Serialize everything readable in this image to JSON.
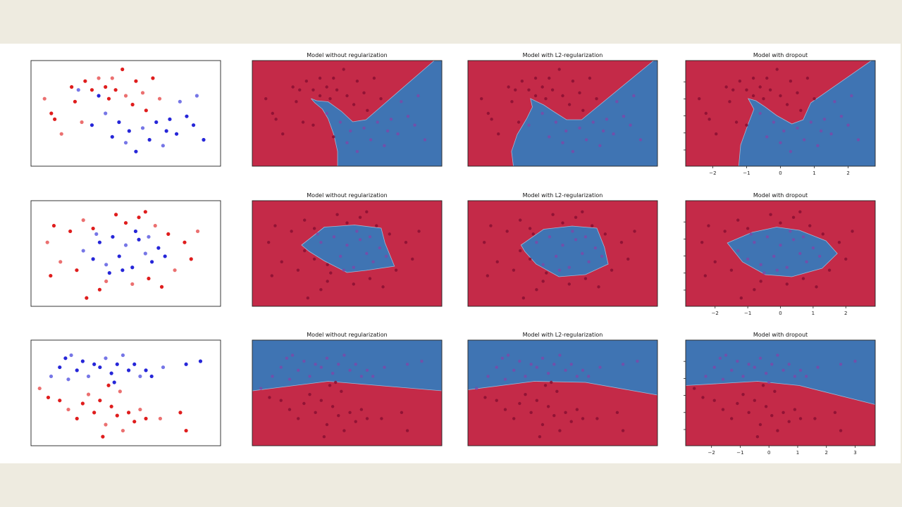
{
  "slide": {
    "background": "#eeebe0",
    "panel_background": "#ffffff"
  },
  "colors": {
    "class_red": "#c42a48",
    "class_blue": "#3f74b3",
    "pt_red": "#dd1111",
    "pt_blue": "#1a1ad6",
    "pt_on_red": "#8a0f33",
    "pt_on_blue": "#7a4aa8"
  },
  "chart_data": [
    {
      "row": 0,
      "type": "scatter",
      "xlim": [
        -2.8,
        2.8
      ],
      "ylim": [
        -2.1,
        1.5
      ],
      "x_ticks": [
        -2,
        -1,
        0,
        1,
        2
      ],
      "x_tick_labels": [
        "−2",
        "−1",
        "0",
        "1",
        "2"
      ],
      "titles": [
        "",
        "Model without regularization",
        "Model with L2-regularization",
        "Model with dropout"
      ],
      "points": {
        "red": [
          [
            -2.4,
            0.2
          ],
          [
            -2.2,
            -0.3
          ],
          [
            -2.1,
            -0.5
          ],
          [
            -1.9,
            -1.0
          ],
          [
            -1.6,
            0.6
          ],
          [
            -1.5,
            0.1
          ],
          [
            -1.3,
            -0.6
          ],
          [
            -1.2,
            0.8
          ],
          [
            -1.0,
            0.5
          ],
          [
            -0.8,
            0.9
          ],
          [
            -0.6,
            0.6
          ],
          [
            -0.5,
            0.2
          ],
          [
            -0.4,
            0.9
          ],
          [
            -0.3,
            0.5
          ],
          [
            -0.1,
            1.2
          ],
          [
            0.0,
            0.3
          ],
          [
            0.2,
            0.0
          ],
          [
            0.3,
            0.8
          ],
          [
            0.5,
            0.4
          ],
          [
            0.6,
            -0.2
          ],
          [
            0.8,
            0.9
          ],
          [
            1.0,
            0.2
          ]
        ],
        "blue": [
          [
            -1.4,
            0.5
          ],
          [
            -1.0,
            -0.7
          ],
          [
            -0.8,
            0.3
          ],
          [
            -0.6,
            -0.3
          ],
          [
            -0.4,
            -1.1
          ],
          [
            -0.2,
            -0.6
          ],
          [
            0.0,
            -1.3
          ],
          [
            0.1,
            -0.9
          ],
          [
            0.3,
            -1.6
          ],
          [
            0.5,
            -0.8
          ],
          [
            0.7,
            -1.2
          ],
          [
            0.9,
            -0.6
          ],
          [
            1.1,
            -1.4
          ],
          [
            1.3,
            -0.5
          ],
          [
            1.5,
            -1.0
          ],
          [
            1.6,
            0.1
          ],
          [
            1.8,
            -0.4
          ],
          [
            2.0,
            -0.7
          ],
          [
            2.1,
            0.3
          ],
          [
            2.3,
            -1.2
          ],
          [
            1.2,
            -0.9
          ]
        ]
      }
    },
    {
      "row": 1,
      "type": "scatter",
      "xlim": [
        -2.9,
        2.9
      ],
      "ylim": [
        -1.9,
        1.9
      ],
      "x_ticks": [
        -2,
        -1,
        0,
        1,
        2
      ],
      "x_tick_labels": [
        "−2",
        "−1",
        "0",
        "1",
        "2"
      ],
      "titles": [
        "",
        "Model without regularization",
        "Model with L2-regularization",
        "Model with dropout"
      ],
      "points": {
        "red": [
          [
            -2.4,
            0.4
          ],
          [
            -2.3,
            -0.8
          ],
          [
            -2.2,
            1.0
          ],
          [
            -2.0,
            -0.3
          ],
          [
            -1.7,
            0.8
          ],
          [
            -1.5,
            -0.6
          ],
          [
            -1.3,
            1.2
          ],
          [
            -1.0,
            0.9
          ],
          [
            -0.8,
            -1.3
          ],
          [
            -0.6,
            -1.0
          ],
          [
            -0.3,
            1.4
          ],
          [
            0.0,
            1.1
          ],
          [
            0.2,
            -1.1
          ],
          [
            0.4,
            1.3
          ],
          [
            0.7,
            -0.9
          ],
          [
            0.9,
            1.0
          ],
          [
            1.1,
            -1.2
          ],
          [
            1.3,
            0.7
          ],
          [
            1.5,
            -0.6
          ],
          [
            1.8,
            0.4
          ],
          [
            2.0,
            -0.2
          ],
          [
            2.2,
            0.8
          ],
          [
            -1.2,
            -1.6
          ],
          [
            0.6,
            1.5
          ]
        ],
        "blue": [
          [
            -1.3,
            0.1
          ],
          [
            -1.0,
            -0.2
          ],
          [
            -0.8,
            0.4
          ],
          [
            -0.6,
            -0.4
          ],
          [
            -0.4,
            0.6
          ],
          [
            -0.2,
            -0.1
          ],
          [
            0.0,
            0.3
          ],
          [
            0.2,
            -0.5
          ],
          [
            0.4,
            0.5
          ],
          [
            0.6,
            0.0
          ],
          [
            0.8,
            -0.3
          ],
          [
            1.0,
            0.2
          ],
          [
            -0.9,
            0.7
          ],
          [
            0.3,
            0.8
          ],
          [
            -0.5,
            -0.7
          ],
          [
            0.7,
            0.6
          ],
          [
            1.2,
            -0.1
          ],
          [
            -0.1,
            -0.6
          ]
        ]
      }
    },
    {
      "row": 2,
      "type": "scatter",
      "xlim": [
        -2.9,
        3.7
      ],
      "ylim": [
        -2.1,
        1.4
      ],
      "x_ticks": [
        -2,
        -1,
        0,
        1,
        2,
        3
      ],
      "x_tick_labels": [
        "−2",
        "−1",
        "0",
        "1",
        "2",
        "3"
      ],
      "titles": [
        "",
        "Model without regularization",
        "Model with L2-regularization",
        "Model with dropout"
      ],
      "points": {
        "blue": [
          [
            -2.2,
            0.2
          ],
          [
            -1.9,
            0.5
          ],
          [
            -1.7,
            0.8
          ],
          [
            -1.5,
            0.9
          ],
          [
            -1.3,
            0.4
          ],
          [
            -1.1,
            0.7
          ],
          [
            -0.9,
            0.2
          ],
          [
            -0.7,
            0.6
          ],
          [
            -0.5,
            0.5
          ],
          [
            -0.3,
            0.8
          ],
          [
            -0.1,
            0.3
          ],
          [
            0.1,
            0.6
          ],
          [
            0.3,
            0.9
          ],
          [
            0.5,
            0.4
          ],
          [
            0.7,
            0.6
          ],
          [
            0.9,
            0.2
          ],
          [
            1.1,
            0.4
          ],
          [
            1.3,
            0.2
          ],
          [
            1.7,
            0.5
          ],
          [
            2.5,
            0.6
          ],
          [
            3.0,
            0.7
          ],
          [
            -1.6,
            0.1
          ],
          [
            0.0,
            0.0
          ]
        ],
        "red": [
          [
            -2.6,
            -0.2
          ],
          [
            -2.3,
            -0.5
          ],
          [
            -1.9,
            -0.6
          ],
          [
            -1.6,
            -0.9
          ],
          [
            -1.3,
            -1.2
          ],
          [
            -1.1,
            -0.7
          ],
          [
            -0.9,
            -0.4
          ],
          [
            -0.7,
            -1.0
          ],
          [
            -0.5,
            -0.6
          ],
          [
            -0.3,
            -1.4
          ],
          [
            -0.1,
            -0.8
          ],
          [
            0.1,
            -1.1
          ],
          [
            0.3,
            -1.6
          ],
          [
            0.5,
            -1.0
          ],
          [
            0.7,
            -1.3
          ],
          [
            0.9,
            -0.9
          ],
          [
            1.1,
            -1.2
          ],
          [
            -0.4,
            -1.8
          ],
          [
            1.6,
            -1.2
          ],
          [
            2.3,
            -1.0
          ],
          [
            2.5,
            -1.6
          ],
          [
            0.2,
            -0.3
          ],
          [
            -0.2,
            -0.1
          ]
        ]
      }
    }
  ]
}
